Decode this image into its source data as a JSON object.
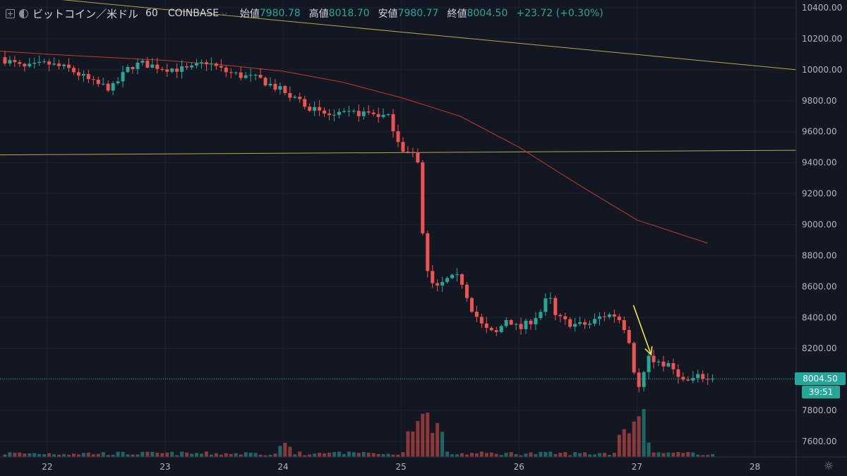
{
  "header": {
    "symbol": "ビットコイン／米ドル",
    "interval": "60",
    "exchange": "COINBASE",
    "open_label": "始値",
    "open": "7980.78",
    "high_label": "高値",
    "high": "8018.70",
    "low_label": "安値",
    "low": "7980.77",
    "close_label": "終値",
    "close": "8004.50",
    "change": "+23.72 (+0.30%)",
    "add_icon": "plus-icon",
    "compare_icon": "compare-icon"
  },
  "price_tag": {
    "price": "8004.50",
    "countdown": "39:51"
  },
  "settings_icon": "gear-icon",
  "colors": {
    "background": "#131722",
    "up": "#26a69a",
    "down": "#ef5350",
    "ma_red": "#c0392b",
    "trendline": "#b5a64a",
    "arrow": "#f5e642",
    "text": "#b2b5be"
  },
  "chart_data": {
    "type": "candlestick",
    "title": "",
    "xlabel": "",
    "ylabel": "",
    "ylim": [
      7500,
      10450
    ],
    "yticks": [
      10400,
      10200,
      10000,
      9800,
      9600,
      9400,
      9200,
      9000,
      8800,
      8600,
      8400,
      8200,
      8000,
      7800,
      7600
    ],
    "ytick_labels": [
      "10400.00",
      "10200.00",
      "10000.00",
      "9800.00",
      "9600.00",
      "9400.00",
      "9200.00",
      "9000.00",
      "8800.00",
      "8600.00",
      "8400.00",
      "8200.00",
      "8000.00",
      "7800.00",
      "7600.00"
    ],
    "xlim": [
      21.6,
      28.35
    ],
    "xticks": [
      22,
      23,
      24,
      25,
      26,
      27,
      28
    ],
    "xtick_labels": [
      "22",
      "23",
      "24",
      "25",
      "26",
      "27",
      "28"
    ],
    "keypoints": [
      [
        21.6,
        10080
      ],
      [
        21.8,
        10010
      ],
      [
        22.0,
        10040
      ],
      [
        22.2,
        10000
      ],
      [
        22.4,
        9910
      ],
      [
        22.55,
        9880
      ],
      [
        22.7,
        10020
      ],
      [
        22.8,
        10040
      ],
      [
        23.0,
        10010
      ],
      [
        23.2,
        10000
      ],
      [
        23.35,
        10050
      ],
      [
        23.5,
        9990
      ],
      [
        23.65,
        9960
      ],
      [
        23.8,
        9940
      ],
      [
        24.0,
        9860
      ],
      [
        24.15,
        9800
      ],
      [
        24.3,
        9720
      ],
      [
        24.45,
        9700
      ],
      [
        24.6,
        9720
      ],
      [
        24.75,
        9720
      ],
      [
        24.9,
        9690
      ],
      [
        25.0,
        9500
      ],
      [
        25.1,
        9440
      ],
      [
        25.15,
        9380
      ],
      [
        25.2,
        8720
      ],
      [
        25.3,
        8580
      ],
      [
        25.4,
        8650
      ],
      [
        25.5,
        8660
      ],
      [
        25.6,
        8460
      ],
      [
        25.7,
        8330
      ],
      [
        25.8,
        8290
      ],
      [
        25.9,
        8400
      ],
      [
        26.0,
        8320
      ],
      [
        26.1,
        8380
      ],
      [
        26.2,
        8450
      ],
      [
        26.25,
        8560
      ],
      [
        26.3,
        8410
      ],
      [
        26.4,
        8370
      ],
      [
        26.5,
        8350
      ],
      [
        26.6,
        8360
      ],
      [
        26.7,
        8410
      ],
      [
        26.8,
        8420
      ],
      [
        26.88,
        8370
      ],
      [
        26.95,
        8200
      ],
      [
        27.0,
        7910
      ],
      [
        27.05,
        8020
      ],
      [
        27.1,
        8130
      ],
      [
        27.2,
        8110
      ],
      [
        27.3,
        8070
      ],
      [
        27.35,
        8040
      ],
      [
        27.4,
        7980
      ],
      [
        27.5,
        8010
      ],
      [
        27.55,
        8020
      ],
      [
        27.6,
        8000
      ],
      [
        27.65,
        8004.5
      ]
    ],
    "last_price": 8004.5,
    "overlays": [
      {
        "name": "",
        "type": "line",
        "points": [
          [
            21.6,
            10490
          ],
          [
            28.35,
            10000
          ]
        ]
      },
      {
        "name": "",
        "type": "line",
        "points": [
          [
            21.6,
            9450
          ],
          [
            28.35,
            9480
          ]
        ]
      },
      {
        "name": "",
        "type": "ma",
        "points": [
          [
            21.6,
            10120
          ],
          [
            22.0,
            10100
          ],
          [
            22.5,
            10080
          ],
          [
            23.0,
            10060
          ],
          [
            23.5,
            10030
          ],
          [
            24.0,
            9990
          ],
          [
            24.5,
            9920
          ],
          [
            25.0,
            9820
          ],
          [
            25.5,
            9700
          ],
          [
            26.0,
            9500
          ],
          [
            26.5,
            9260
          ],
          [
            27.0,
            9030
          ],
          [
            27.6,
            8880
          ]
        ]
      }
    ],
    "volume_spikes": [
      [
        24.0,
        4
      ],
      [
        25.1,
        8
      ],
      [
        25.2,
        14
      ],
      [
        25.3,
        10
      ],
      [
        26.9,
        9
      ],
      [
        27.0,
        14
      ],
      [
        27.05,
        6
      ]
    ],
    "annotation": {
      "type": "arrow",
      "from": [
        26.97,
        8480
      ],
      "to": [
        27.12,
        8160
      ]
    }
  }
}
